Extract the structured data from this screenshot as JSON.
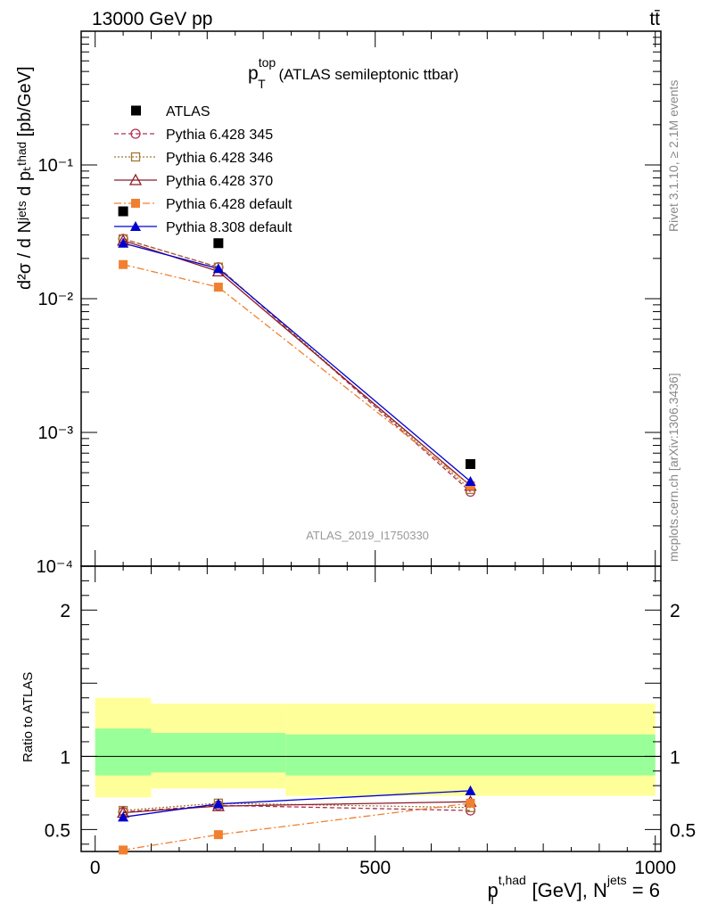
{
  "header": {
    "beam": "13000 GeV pp",
    "process": "tt̄",
    "rivet": "Rivet 3.1.10, ≥ 2.1M events",
    "mcplots": "mcplots.cern.ch [arXiv:1306.3436]",
    "analysis": "ATLAS_2019_I1750330"
  },
  "chart_data": [
    {
      "type": "line",
      "title_main": "p",
      "title_sup": "top",
      "title_sub": "T",
      "title_rest": " (ATLAS semileptonic ttbar)",
      "ylabel": "d²σ / d Nʲᵉᵗˢ d pₜᵗʰᵃᵈ [pb/GeV]",
      "yscale": "log",
      "xlim": [
        -25,
        1010
      ],
      "ylim": [
        0.0001,
        1
      ],
      "yticks": [
        "10⁻¹",
        "10⁻²",
        "10⁻³",
        "10⁻⁴"
      ],
      "legend_position": "top-left",
      "series": [
        {
          "name": "ATLAS",
          "color": "#000000",
          "marker": "square-filled",
          "line": "none",
          "x": [
            50,
            220,
            670
          ],
          "y": [
            0.045,
            0.026,
            0.00058
          ]
        },
        {
          "name": "Pythia 6.428 345",
          "color": "#b03050",
          "marker": "circle-open",
          "line": "dashed",
          "x": [
            50,
            220,
            670
          ],
          "y": [
            0.028,
            0.0172,
            0.00036
          ]
        },
        {
          "name": "Pythia 6.428 346",
          "color": "#a07830",
          "marker": "square-open",
          "line": "dotted",
          "x": [
            50,
            220,
            670
          ],
          "y": [
            0.028,
            0.0172,
            0.000375
          ]
        },
        {
          "name": "Pythia 6.428 370",
          "color": "#8b1a2a",
          "marker": "triangle-open",
          "line": "solid",
          "x": [
            50,
            220,
            670
          ],
          "y": [
            0.0272,
            0.016,
            0.0004
          ]
        },
        {
          "name": "Pythia 6.428 default",
          "color": "#f08030",
          "marker": "square-filled",
          "line": "dashdot",
          "x": [
            50,
            220,
            670
          ],
          "y": [
            0.018,
            0.0122,
            0.0004
          ]
        },
        {
          "name": "Pythia 8.308 default",
          "color": "#0000d0",
          "marker": "triangle-filled",
          "line": "solid",
          "x": [
            50,
            220,
            670
          ],
          "y": [
            0.026,
            0.0168,
            0.00043
          ]
        }
      ]
    },
    {
      "type": "line",
      "ylabel": "Ratio to ATLAS",
      "xlabel": "pₜᵗʰᵃᵈ [GeV], Nʲᵉᵗˢ = 6",
      "xlabel_main": "p",
      "xlabel_sup": "t,had",
      "xlabel_sub": "T",
      "xlabel_rest": " [GeV], N",
      "xlabel_sup2": "jets",
      "xlabel_end": " = 6",
      "xlim": [
        -25,
        1010
      ],
      "ylim": [
        0.35,
        2.3
      ],
      "xticks": [
        "0",
        "500",
        "1000"
      ],
      "yticks": [
        "2",
        "1",
        "0.5"
      ],
      "bands": [
        {
          "x0": 0,
          "x1": 100,
          "yellow": [
            0.72,
            1.4
          ],
          "green": [
            0.87,
            1.19
          ]
        },
        {
          "x0": 100,
          "x1": 340,
          "yellow": [
            0.78,
            1.36
          ],
          "green": [
            0.89,
            1.16
          ]
        },
        {
          "x0": 340,
          "x1": 1000,
          "yellow": [
            0.73,
            1.36
          ],
          "green": [
            0.87,
            1.15
          ]
        }
      ],
      "series": [
        {
          "name": "Pythia 6.428 345",
          "color": "#b03050",
          "marker": "circle-open",
          "line": "dashed",
          "x": [
            50,
            220,
            670
          ],
          "y": [
            0.62,
            0.665,
            0.63
          ]
        },
        {
          "name": "Pythia 6.428 346",
          "color": "#a07830",
          "marker": "square-open",
          "line": "dotted",
          "x": [
            50,
            220,
            670
          ],
          "y": [
            0.63,
            0.68,
            0.65
          ]
        },
        {
          "name": "Pythia 6.428 370",
          "color": "#8b1a2a",
          "marker": "triangle-open",
          "line": "solid",
          "x": [
            50,
            220,
            670
          ],
          "y": [
            0.615,
            0.66,
            0.69
          ]
        },
        {
          "name": "Pythia 6.428 default",
          "color": "#f08030",
          "marker": "square-filled",
          "line": "dashdot",
          "x": [
            50,
            220,
            670
          ],
          "y": [
            0.36,
            0.465,
            0.68
          ]
        },
        {
          "name": "Pythia 8.308 default",
          "color": "#0000d0",
          "marker": "triangle-filled",
          "line": "solid",
          "x": [
            50,
            220,
            670
          ],
          "y": [
            0.585,
            0.675,
            0.765
          ]
        }
      ]
    }
  ]
}
